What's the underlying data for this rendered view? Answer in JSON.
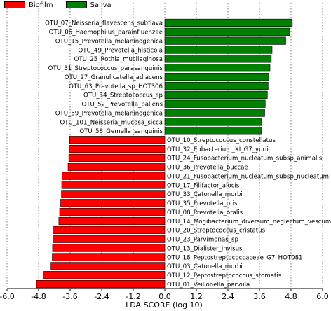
{
  "chart_data": {
    "type": "bar",
    "orientation": "horizontal",
    "xlabel": "LDA SCORE (log 10)",
    "xlim": [
      -6.0,
      6.0
    ],
    "xticks": [
      "-6.0",
      "-4.8",
      "-3.6",
      "-2.4",
      "-1.2",
      "0.0",
      "1.2",
      "2.4",
      "3.6",
      "4.8",
      "6.0"
    ],
    "xtick_values": [
      -6.0,
      -4.8,
      -3.6,
      -2.4,
      -1.2,
      0.0,
      1.2,
      2.4,
      3.6,
      4.8,
      6.0
    ],
    "grid": "vertical-dotted",
    "legend_position": "top-left",
    "series": [
      {
        "name": "Biofilm",
        "color": "#ff0000"
      },
      {
        "name": "Saliva",
        "color": "#008000"
      }
    ],
    "bars": [
      {
        "label": "OTU_07_Neisseria_flavescens_subflava",
        "value": 4.85,
        "group": "Saliva"
      },
      {
        "label": "OTU_06_Haemophilus_parainfluenzae",
        "value": 4.75,
        "group": "Saliva"
      },
      {
        "label": "OTU_15_Prevotella_melaninogenica",
        "value": 4.6,
        "group": "Saliva"
      },
      {
        "label": "OTU_49_Prevotella_histicola",
        "value": 4.08,
        "group": "Saliva"
      },
      {
        "label": "OTU_25_Rothia_mucilaginosa",
        "value": 4.05,
        "group": "Saliva"
      },
      {
        "label": "OTU_31_Streptococcus_parasanguinis",
        "value": 4.0,
        "group": "Saliva"
      },
      {
        "label": "OTU_27_Granulicatella_adiacens",
        "value": 3.95,
        "group": "Saliva"
      },
      {
        "label": "OTU_63_Prevotella_sp_HOT306",
        "value": 3.93,
        "group": "Saliva"
      },
      {
        "label": "OTU_34_Streptococcus_sp",
        "value": 3.9,
        "group": "Saliva"
      },
      {
        "label": "OTU_52_Prevotella_pallens",
        "value": 3.82,
        "group": "Saliva"
      },
      {
        "label": "OTU_59_Prevotella_melaninogenica",
        "value": 3.8,
        "group": "Saliva"
      },
      {
        "label": "OTU_101_Neisseria_mucosa_sicca",
        "value": 3.68,
        "group": "Saliva"
      },
      {
        "label": "OTU_58_Gemella_sanguinis",
        "value": 3.68,
        "group": "Saliva"
      },
      {
        "label": "OTU_10_Streptococcus_constellatus",
        "value": -3.62,
        "group": "Biofilm"
      },
      {
        "label": "OTU_32_Eubacterium_XI_G7_yurii",
        "value": -3.63,
        "group": "Biofilm"
      },
      {
        "label": "OTU_24_Fusobacterium_nucleatum_subsp_animalis",
        "value": -3.65,
        "group": "Biofilm"
      },
      {
        "label": "OTU_36_Prevotella_buccae",
        "value": -3.68,
        "group": "Biofilm"
      },
      {
        "label": "OTU_21_Fusobacterium_nucleatum_subsp_nucleatum",
        "value": -3.9,
        "group": "Biofilm"
      },
      {
        "label": "OTU_17_Filifactor_alocis",
        "value": -3.92,
        "group": "Biofilm"
      },
      {
        "label": "OTU_33_Catonella_morbi",
        "value": -3.93,
        "group": "Biofilm"
      },
      {
        "label": "OTU_35_Prevotella_oris",
        "value": -3.96,
        "group": "Biofilm"
      },
      {
        "label": "OTU_08_Prevotella_oralis",
        "value": -4.0,
        "group": "Biofilm"
      },
      {
        "label": "OTU_14_Mogibacterium_diversum_neglectum_vescum",
        "value": -4.03,
        "group": "Biofilm"
      },
      {
        "label": "OTU_20_Streptococcus_cristatus",
        "value": -4.25,
        "group": "Biofilm"
      },
      {
        "label": "OTU_23_Parvimonas_sp",
        "value": -4.25,
        "group": "Biofilm"
      },
      {
        "label": "OTU_13_Dialister_invisus",
        "value": -4.27,
        "group": "Biofilm"
      },
      {
        "label": "OTU_18_Peptostreptococcaceae_G7_HOT081",
        "value": -4.28,
        "group": "Biofilm"
      },
      {
        "label": "OTU_03_Catonella_morbi",
        "value": -4.33,
        "group": "Biofilm"
      },
      {
        "label": "OTU_12_Peptostreptococcus_stomatis",
        "value": -4.6,
        "group": "Biofilm"
      },
      {
        "label": "OTU_01_Veillonella_parvula",
        "value": -4.88,
        "group": "Biofilm"
      }
    ]
  }
}
